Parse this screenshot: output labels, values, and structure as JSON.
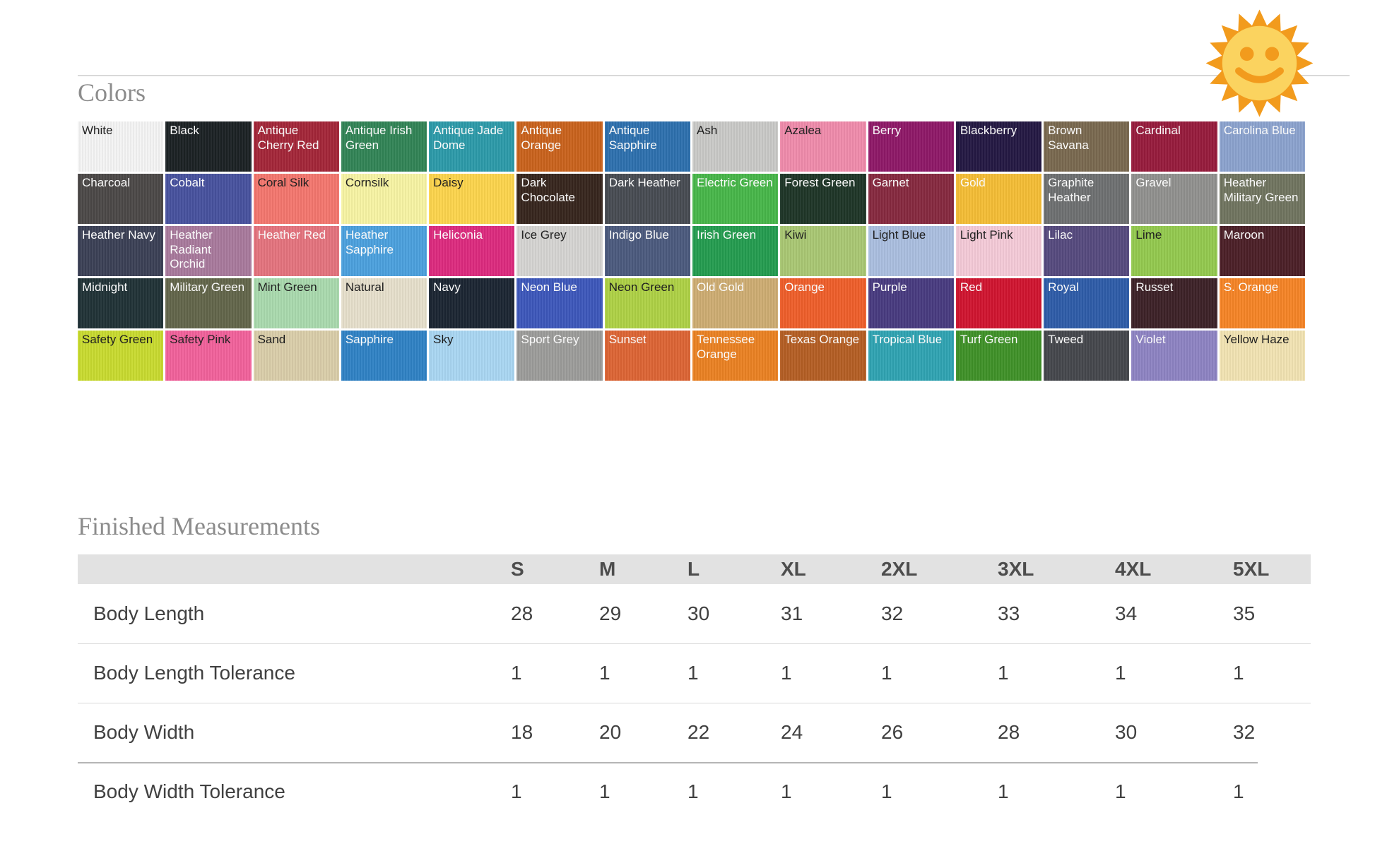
{
  "page": {
    "colors_heading": "Colors",
    "measurements_heading": "Finished Measurements"
  },
  "sun_icon": {
    "ray_color": "#F29B1D",
    "face_color": "#FBD35F",
    "feature_color": "#F29B1D"
  },
  "colors": {
    "swatches": [
      {
        "name": "White",
        "bg": "#f4f4f4",
        "fg": "#1a1a1a"
      },
      {
        "name": "Black",
        "bg": "#1b2124",
        "fg": "#ffffff"
      },
      {
        "name": "Antique Cherry Red",
        "bg": "#a32638",
        "fg": "#ffffff"
      },
      {
        "name": "Antique Irish Green",
        "bg": "#318456",
        "fg": "#ffffff"
      },
      {
        "name": "Antique Jade Dome",
        "bg": "#2c9aa9",
        "fg": "#ffffff"
      },
      {
        "name": "Antique Orange",
        "bg": "#c9621c",
        "fg": "#ffffff"
      },
      {
        "name": "Antique Sapphire",
        "bg": "#2d70ae",
        "fg": "#ffffff"
      },
      {
        "name": "Ash",
        "bg": "#c9c9c7",
        "fg": "#1a1a1a"
      },
      {
        "name": "Azalea",
        "bg": "#ef8bab",
        "fg": "#1a1a1a"
      },
      {
        "name": "Berry",
        "bg": "#8e1867",
        "fg": "#ffffff"
      },
      {
        "name": "Blackberry",
        "bg": "#241843",
        "fg": "#ffffff"
      },
      {
        "name": "Brown Savana",
        "bg": "#79694f",
        "fg": "#ffffff"
      },
      {
        "name": "Cardinal",
        "bg": "#971b3c",
        "fg": "#ffffff"
      },
      {
        "name": "Carolina Blue",
        "bg": "#8ba2ce",
        "fg": "#ffffff"
      },
      {
        "name": "Charcoal",
        "bg": "#4b4847",
        "fg": "#ffffff"
      },
      {
        "name": "Cobalt",
        "bg": "#47519e",
        "fg": "#ffffff"
      },
      {
        "name": "Coral Silk",
        "bg": "#f3766e",
        "fg": "#1a1a1a"
      },
      {
        "name": "Cornsilk",
        "bg": "#f7f3a3",
        "fg": "#1a1a1a"
      },
      {
        "name": "Daisy",
        "bg": "#fcd44c",
        "fg": "#1a1a1a"
      },
      {
        "name": "Dark Chocolate",
        "bg": "#36251d",
        "fg": "#ffffff"
      },
      {
        "name": "Dark Heather",
        "bg": "#474b52",
        "fg": "#ffffff"
      },
      {
        "name": "Electric Green",
        "bg": "#47b649",
        "fg": "#ffffff"
      },
      {
        "name": "Forest Green",
        "bg": "#1e3527",
        "fg": "#ffffff"
      },
      {
        "name": "Garnet",
        "bg": "#86293f",
        "fg": "#ffffff"
      },
      {
        "name": "Gold",
        "bg": "#f4bd35",
        "fg": "#ffffff"
      },
      {
        "name": "Graphite Heather",
        "bg": "#6e7071",
        "fg": "#ffffff"
      },
      {
        "name": "Gravel",
        "bg": "#90908e",
        "fg": "#ffffff"
      },
      {
        "name": "Heather Military Green",
        "bg": "#70745f",
        "fg": "#ffffff"
      },
      {
        "name": "Heather Navy",
        "bg": "#3b4055",
        "fg": "#ffffff"
      },
      {
        "name": "Heather Radiant Orchid",
        "bg": "#a8799c",
        "fg": "#ffffff"
      },
      {
        "name": "Heather Red",
        "bg": "#e4737d",
        "fg": "#ffffff"
      },
      {
        "name": "Heather Sapphire",
        "bg": "#4ba0dd",
        "fg": "#ffffff"
      },
      {
        "name": "Heliconia",
        "bg": "#dc2a7e",
        "fg": "#ffffff"
      },
      {
        "name": "Ice Grey",
        "bg": "#d5d4d2",
        "fg": "#1a1a1a"
      },
      {
        "name": "Indigo Blue",
        "bg": "#4b5a7d",
        "fg": "#ffffff"
      },
      {
        "name": "Irish Green",
        "bg": "#249c4f",
        "fg": "#ffffff"
      },
      {
        "name": "Kiwi",
        "bg": "#a9c773",
        "fg": "#1a1a1a"
      },
      {
        "name": "Light Blue",
        "bg": "#aabedf",
        "fg": "#1a1a1a"
      },
      {
        "name": "Light Pink",
        "bg": "#f4cad7",
        "fg": "#1a1a1a"
      },
      {
        "name": "Lilac",
        "bg": "#564a7e",
        "fg": "#ffffff"
      },
      {
        "name": "Lime",
        "bg": "#93c94e",
        "fg": "#1a1a1a"
      },
      {
        "name": "Maroon",
        "bg": "#4b1f27",
        "fg": "#ffffff"
      },
      {
        "name": "Midnight",
        "bg": "#203236",
        "fg": "#ffffff"
      },
      {
        "name": "Military Green",
        "bg": "#62654a",
        "fg": "#ffffff"
      },
      {
        "name": "Mint Green",
        "bg": "#a9d9ad",
        "fg": "#1a1a1a"
      },
      {
        "name": "Natural",
        "bg": "#e6dfcb",
        "fg": "#1a1a1a"
      },
      {
        "name": "Navy",
        "bg": "#1b2532",
        "fg": "#ffffff"
      },
      {
        "name": "Neon Blue",
        "bg": "#3d57ba",
        "fg": "#ffffff"
      },
      {
        "name": "Neon Green",
        "bg": "#aed145",
        "fg": "#1a1a1a"
      },
      {
        "name": "Old Gold",
        "bg": "#cdac72",
        "fg": "#ffffff"
      },
      {
        "name": "Orange",
        "bg": "#ee5e2a",
        "fg": "#ffffff"
      },
      {
        "name": "Purple",
        "bg": "#483b80",
        "fg": "#ffffff"
      },
      {
        "name": "Red",
        "bg": "#d0142f",
        "fg": "#ffffff"
      },
      {
        "name": "Royal",
        "bg": "#2e5ca8",
        "fg": "#ffffff"
      },
      {
        "name": "Russet",
        "bg": "#3c2127",
        "fg": "#ffffff"
      },
      {
        "name": "S. Orange",
        "bg": "#f58426",
        "fg": "#ffffff"
      },
      {
        "name": "Safety Green",
        "bg": "#c8da2f",
        "fg": "#1a1a1a"
      },
      {
        "name": "Safety Pink",
        "bg": "#f1619b",
        "fg": "#1a1a1a"
      },
      {
        "name": "Sand",
        "bg": "#d9cda9",
        "fg": "#1a1a1a"
      },
      {
        "name": "Sapphire",
        "bg": "#2f82c4",
        "fg": "#ffffff"
      },
      {
        "name": "Sky",
        "bg": "#a9d6f2",
        "fg": "#1a1a1a"
      },
      {
        "name": "Sport Grey",
        "bg": "#9c9c9a",
        "fg": "#ffffff"
      },
      {
        "name": "Sunset",
        "bg": "#dc6434",
        "fg": "#ffffff"
      },
      {
        "name": "Tennessee Orange",
        "bg": "#ea8122",
        "fg": "#ffffff"
      },
      {
        "name": "Texas Orange",
        "bg": "#b45e24",
        "fg": "#ffffff"
      },
      {
        "name": "Tropical Blue",
        "bg": "#2fa3b2",
        "fg": "#ffffff"
      },
      {
        "name": "Turf Green",
        "bg": "#3f9128",
        "fg": "#ffffff"
      },
      {
        "name": "Tweed",
        "bg": "#45474c",
        "fg": "#ffffff"
      },
      {
        "name": "Violet",
        "bg": "#8d83c2",
        "fg": "#ffffff"
      },
      {
        "name": "Yellow Haze",
        "bg": "#f1e3b2",
        "fg": "#1a1a1a"
      }
    ]
  },
  "measurements": {
    "columns": [
      "S",
      "M",
      "L",
      "XL",
      "2XL",
      "3XL",
      "4XL",
      "5XL"
    ],
    "rows": [
      {
        "label": "Body Length",
        "values": [
          "28",
          "29",
          "30",
          "31",
          "32",
          "33",
          "34",
          "35"
        ]
      },
      {
        "label": "Body Length Tolerance",
        "values": [
          "1",
          "1",
          "1",
          "1",
          "1",
          "1",
          "1",
          "1"
        ]
      },
      {
        "label": "Body Width",
        "values": [
          "18",
          "20",
          "22",
          "24",
          "26",
          "28",
          "30",
          "32"
        ]
      },
      {
        "label": "Body Width Tolerance",
        "values": [
          "1",
          "1",
          "1",
          "1",
          "1",
          "1",
          "1",
          "1"
        ]
      }
    ]
  }
}
